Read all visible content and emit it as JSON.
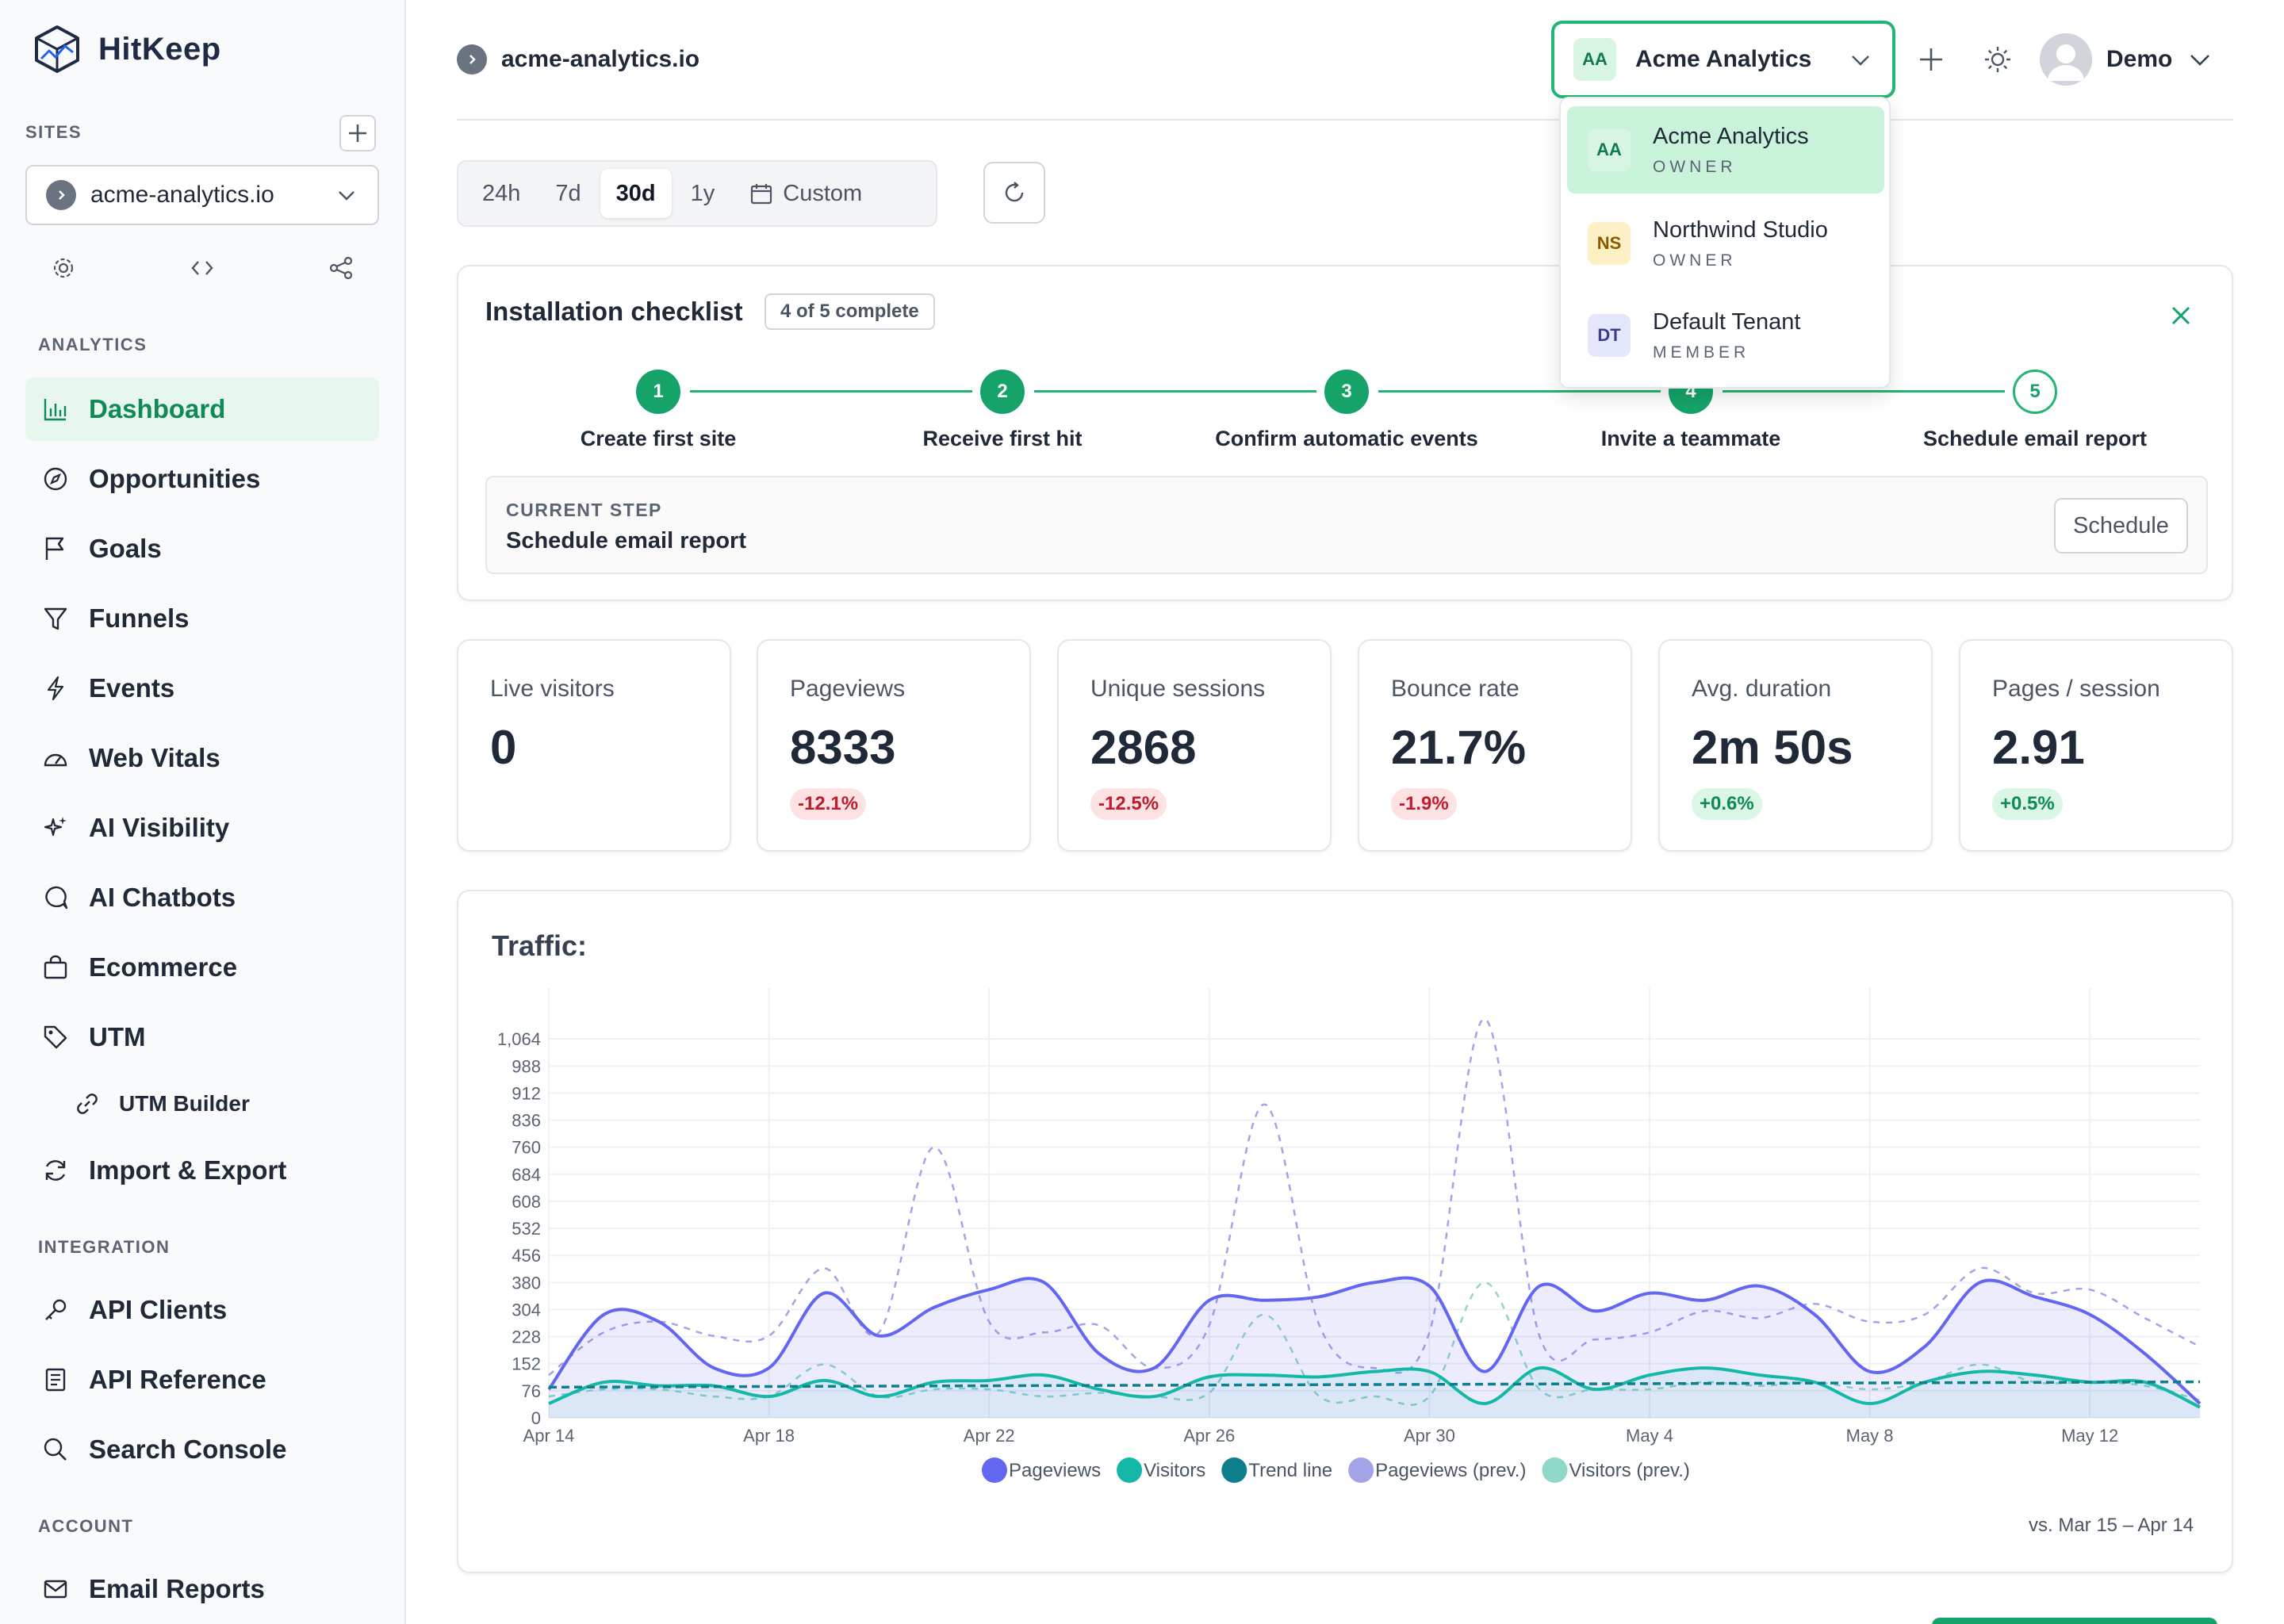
{
  "brand": {
    "name": "HitKeep"
  },
  "sidebar": {
    "sites_label": "SITES",
    "site": "acme-analytics.io",
    "sections": {
      "analytics": "ANALYTICS",
      "integration": "INTEGRATION",
      "account": "ACCOUNT"
    },
    "analytics_items": [
      {
        "label": "Dashboard",
        "icon": "bar-chart-icon",
        "active": true
      },
      {
        "label": "Opportunities",
        "icon": "compass-icon"
      },
      {
        "label": "Goals",
        "icon": "flag-icon"
      },
      {
        "label": "Funnels",
        "icon": "funnel-icon"
      },
      {
        "label": "Events",
        "icon": "lightning-icon"
      },
      {
        "label": "Web Vitals",
        "icon": "gauge-icon"
      },
      {
        "label": "AI Visibility",
        "icon": "sparkles-icon"
      },
      {
        "label": "AI Chatbots",
        "icon": "chat-bubble-icon"
      },
      {
        "label": "Ecommerce",
        "icon": "shopping-bag-icon"
      },
      {
        "label": "UTM",
        "icon": "tag-icon"
      },
      {
        "label": "UTM Builder",
        "icon": "link-icon",
        "sub": true
      },
      {
        "label": "Import & Export",
        "icon": "sync-icon"
      }
    ],
    "integration_items": [
      {
        "label": "API Clients",
        "icon": "key-icon"
      },
      {
        "label": "API Reference",
        "icon": "document-icon"
      },
      {
        "label": "Search Console",
        "icon": "search-icon"
      }
    ],
    "account_items": [
      {
        "label": "Email Reports",
        "icon": "envelope-icon"
      }
    ]
  },
  "header": {
    "site": "acme-analytics.io",
    "tenant": {
      "initials": "AA",
      "name": "Acme Analytics"
    },
    "user": "Demo"
  },
  "tenant_menu": [
    {
      "initials": "AA",
      "name": "Acme Analytics",
      "role": "OWNER",
      "selected": true,
      "color": "#d8f5e4",
      "text_color": "#0f7a4a"
    },
    {
      "initials": "NS",
      "name": "Northwind Studio",
      "role": "OWNER",
      "color": "#fdf0c4",
      "text_color": "#8a5a00"
    },
    {
      "initials": "DT",
      "name": "Default Tenant",
      "role": "MEMBER",
      "color": "#e4e7fb",
      "text_color": "#3b3f8f"
    }
  ],
  "range": {
    "tabs": [
      "24h",
      "7d",
      "30d",
      "1y"
    ],
    "active": "30d",
    "custom": "Custom"
  },
  "checklist": {
    "title": "Installation checklist",
    "badge": "4 of 5 complete",
    "steps": [
      {
        "num": "1",
        "label": "Create first site",
        "done": true
      },
      {
        "num": "2",
        "label": "Receive first hit",
        "done": true
      },
      {
        "num": "3",
        "label": "Confirm automatic events",
        "done": true
      },
      {
        "num": "4",
        "label": "Invite a teammate",
        "done": true
      },
      {
        "num": "5",
        "label": "Schedule email report",
        "done": false
      }
    ],
    "current_label": "CURRENT STEP",
    "current_value": "Schedule email report",
    "button": "Schedule"
  },
  "stats": [
    {
      "label": "Live visitors",
      "value": "0"
    },
    {
      "label": "Pageviews",
      "value": "8333",
      "delta": "-12.1%",
      "trend": "neg"
    },
    {
      "label": "Unique sessions",
      "value": "2868",
      "delta": "-12.5%",
      "trend": "neg"
    },
    {
      "label": "Bounce rate",
      "value": "21.7%",
      "delta": "-1.9%",
      "trend": "neg"
    },
    {
      "label": "Avg. duration",
      "value": "2m 50s",
      "delta": "+0.6%",
      "trend": "pos"
    },
    {
      "label": "Pages / session",
      "value": "2.91",
      "delta": "+0.5%",
      "trend": "pos"
    }
  ],
  "traffic": {
    "title": "Traffic:",
    "footer": "vs. Mar 15 – Apr 14"
  },
  "chart_data": {
    "type": "line",
    "title": "Traffic:",
    "x": [
      "Apr 14",
      "Apr 15",
      "Apr 16",
      "Apr 17",
      "Apr 18",
      "Apr 19",
      "Apr 20",
      "Apr 21",
      "Apr 22",
      "Apr 23",
      "Apr 24",
      "Apr 25",
      "Apr 26",
      "Apr 27",
      "Apr 28",
      "Apr 29",
      "Apr 30",
      "May 1",
      "May 2",
      "May 3",
      "May 4",
      "May 5",
      "May 6",
      "May 7",
      "May 8",
      "May 9",
      "May 10",
      "May 11",
      "May 12",
      "May 13",
      "May 14"
    ],
    "x_tick_labels": [
      "Apr 14",
      "Apr 18",
      "Apr 22",
      "Apr 26",
      "Apr 30",
      "May 4",
      "May 8",
      "May 12"
    ],
    "y_ticks": [
      0,
      76,
      152,
      228,
      304,
      380,
      456,
      532,
      608,
      684,
      760,
      836,
      912,
      988,
      1064
    ],
    "y_tick_labels": [
      "0",
      "76",
      "152",
      "228",
      "304",
      "380",
      "456",
      "532",
      "608",
      "684",
      "760",
      "836",
      "912",
      "988",
      "1,064"
    ],
    "ylim": [
      0,
      1140
    ],
    "grid": true,
    "legend_position": "bottom",
    "series": [
      {
        "name": "Pageviews",
        "color": "#6366f1",
        "fill": true,
        "style": "solid",
        "values": [
          80,
          290,
          270,
          140,
          140,
          350,
          230,
          310,
          360,
          380,
          180,
          140,
          330,
          330,
          340,
          380,
          370,
          130,
          370,
          300,
          350,
          330,
          370,
          290,
          130,
          200,
          380,
          340,
          290,
          180,
          40
        ]
      },
      {
        "name": "Visitors",
        "color": "#14b8a6",
        "style": "solid",
        "values": [
          40,
          100,
          90,
          90,
          60,
          105,
          60,
          100,
          105,
          120,
          80,
          60,
          115,
          120,
          115,
          130,
          130,
          40,
          140,
          80,
          120,
          140,
          120,
          100,
          40,
          100,
          130,
          120,
          100,
          100,
          30
        ]
      },
      {
        "name": "Trend line",
        "color": "#0e7f8c",
        "style": "dashed",
        "values": [
          86,
          86,
          87,
          87,
          88,
          88,
          89,
          89,
          90,
          90,
          91,
          91,
          92,
          92,
          93,
          93,
          94,
          94,
          95,
          95,
          96,
          96,
          97,
          97,
          98,
          98,
          99,
          99,
          100,
          100,
          101
        ]
      },
      {
        "name": "Pageviews (prev.)",
        "color": "#a5a3e8",
        "style": "dashed",
        "values": [
          120,
          240,
          270,
          230,
          230,
          420,
          240,
          760,
          270,
          240,
          260,
          140,
          260,
          880,
          260,
          140,
          240,
          1120,
          230,
          220,
          240,
          300,
          280,
          320,
          270,
          290,
          420,
          350,
          360,
          280,
          200
        ]
      },
      {
        "name": "Visitors (prev.)",
        "color": "#8ed8c8",
        "style": "dashed",
        "values": [
          60,
          80,
          80,
          60,
          60,
          150,
          60,
          80,
          80,
          60,
          70,
          60,
          70,
          290,
          60,
          60,
          60,
          380,
          80,
          80,
          80,
          100,
          90,
          100,
          80,
          100,
          150,
          100,
          100,
          90,
          50
        ]
      }
    ]
  }
}
